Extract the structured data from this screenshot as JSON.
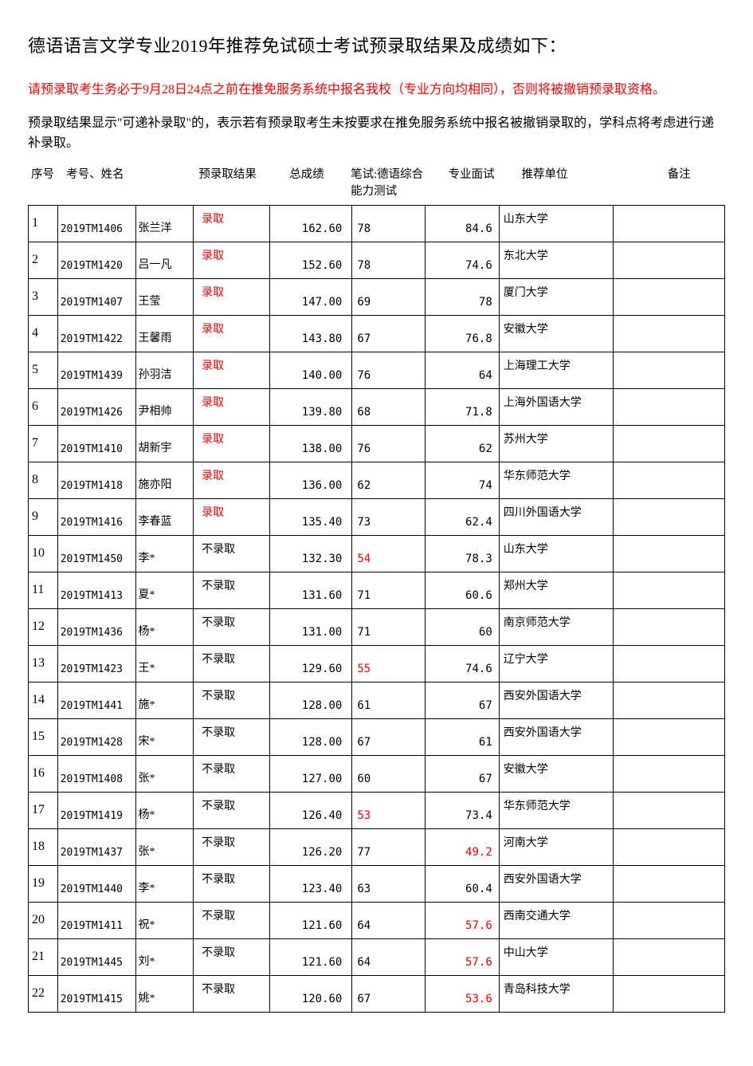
{
  "title": "德语语言文学专业2019年推荐免试硕士考试预录取结果及成绩如下：",
  "notice_red": "请预录取考生务必于9月28日24点之前在推免服务系统中报名我校（专业方向均相同），否则将被撤销预录取资格。",
  "notice_black": "预录取结果显示\"可递补录取\"的，表示若有预录取考生未按要求在推免服务系统中报名被撤销录取的，学科点将考虑进行递补录取。",
  "headers": {
    "seq": "序号",
    "exam_name": "考号、姓名",
    "result": "预录取结果",
    "total": "总成绩",
    "written_l1": "笔试:德语综合",
    "written_l2": "能力测试",
    "interview": "专业面试",
    "university": "推荐单位",
    "note": "备注"
  },
  "result_labels": {
    "admit": "录取",
    "reject": "不录取"
  },
  "colors": {
    "red": "#ff0000",
    "black": "#000000",
    "border": "#000000",
    "bg": "#ffffff"
  },
  "rows": [
    {
      "seq": "1",
      "exam": "2019TM1406",
      "name": "张兰洋",
      "result": "admit",
      "total": "162.60",
      "written": "78",
      "written_red": false,
      "inter": "84.6",
      "inter_red": false,
      "univ": "山东大学",
      "note": ""
    },
    {
      "seq": "2",
      "exam": "2019TM1420",
      "name": "吕一凡",
      "result": "admit",
      "total": "152.60",
      "written": "78",
      "written_red": false,
      "inter": "74.6",
      "inter_red": false,
      "univ": "东北大学",
      "note": ""
    },
    {
      "seq": "3",
      "exam": "2019TM1407",
      "name": "王莹",
      "result": "admit",
      "total": "147.00",
      "written": "69",
      "written_red": false,
      "inter": "78",
      "inter_red": false,
      "univ": "厦门大学",
      "note": ""
    },
    {
      "seq": "4",
      "exam": "2019TM1422",
      "name": "王馨雨",
      "result": "admit",
      "total": "143.80",
      "written": "67",
      "written_red": false,
      "inter": "76.8",
      "inter_red": false,
      "univ": "安徽大学",
      "note": ""
    },
    {
      "seq": "5",
      "exam": "2019TM1439",
      "name": "孙羽洁",
      "result": "admit",
      "total": "140.00",
      "written": "76",
      "written_red": false,
      "inter": "64",
      "inter_red": false,
      "univ": "上海理工大学",
      "note": ""
    },
    {
      "seq": "6",
      "exam": "2019TM1426",
      "name": "尹相帅",
      "result": "admit",
      "total": "139.80",
      "written": "68",
      "written_red": false,
      "inter": "71.8",
      "inter_red": false,
      "univ": "上海外国语大学",
      "note": ""
    },
    {
      "seq": "7",
      "exam": "2019TM1410",
      "name": "胡新宇",
      "result": "admit",
      "total": "138.00",
      "written": "76",
      "written_red": false,
      "inter": "62",
      "inter_red": false,
      "univ": "苏州大学",
      "note": ""
    },
    {
      "seq": "8",
      "exam": "2019TM1418",
      "name": "施亦阳",
      "result": "admit",
      "total": "136.00",
      "written": "62",
      "written_red": false,
      "inter": "74",
      "inter_red": false,
      "univ": "华东师范大学",
      "note": ""
    },
    {
      "seq": "9",
      "exam": "2019TM1416",
      "name": "李春蓝",
      "result": "admit",
      "total": "135.40",
      "written": "73",
      "written_red": false,
      "inter": "62.4",
      "inter_red": false,
      "univ": "四川外国语大学",
      "note": ""
    },
    {
      "seq": "10",
      "exam": "2019TM1450",
      "name": "李*",
      "result": "reject",
      "total": "132.30",
      "written": "54",
      "written_red": true,
      "inter": "78.3",
      "inter_red": false,
      "univ": "山东大学",
      "note": ""
    },
    {
      "seq": "11",
      "exam": "2019TM1413",
      "name": "夏*",
      "result": "reject",
      "total": "131.60",
      "written": "71",
      "written_red": false,
      "inter": "60.6",
      "inter_red": false,
      "univ": "郑州大学",
      "note": ""
    },
    {
      "seq": "12",
      "exam": "2019TM1436",
      "name": "杨*",
      "result": "reject",
      "total": "131.00",
      "written": "71",
      "written_red": false,
      "inter": "60",
      "inter_red": false,
      "univ": "南京师范大学",
      "note": ""
    },
    {
      "seq": "13",
      "exam": "2019TM1423",
      "name": "王*",
      "result": "reject",
      "total": "129.60",
      "written": "55",
      "written_red": true,
      "inter": "74.6",
      "inter_red": false,
      "univ": "辽宁大学",
      "note": ""
    },
    {
      "seq": "14",
      "exam": "2019TM1441",
      "name": "施*",
      "result": "reject",
      "total": "128.00",
      "written": "61",
      "written_red": false,
      "inter": "67",
      "inter_red": false,
      "univ": "西安外国语大学",
      "note": ""
    },
    {
      "seq": "15",
      "exam": "2019TM1428",
      "name": "宋*",
      "result": "reject",
      "total": "128.00",
      "written": "67",
      "written_red": false,
      "inter": "61",
      "inter_red": false,
      "univ": "西安外国语大学",
      "note": ""
    },
    {
      "seq": "16",
      "exam": "2019TM1408",
      "name": "张*",
      "result": "reject",
      "total": "127.00",
      "written": "60",
      "written_red": false,
      "inter": "67",
      "inter_red": false,
      "univ": "安徽大学",
      "note": ""
    },
    {
      "seq": "17",
      "exam": "2019TM1419",
      "name": "杨*",
      "result": "reject",
      "total": "126.40",
      "written": "53",
      "written_red": true,
      "inter": "73.4",
      "inter_red": false,
      "univ": "华东师范大学",
      "note": ""
    },
    {
      "seq": "18",
      "exam": "2019TM1437",
      "name": "张*",
      "result": "reject",
      "total": "126.20",
      "written": "77",
      "written_red": false,
      "inter": "49.2",
      "inter_red": true,
      "univ": "河南大学",
      "note": ""
    },
    {
      "seq": "19",
      "exam": "2019TM1440",
      "name": "李*",
      "result": "reject",
      "total": "123.40",
      "written": "63",
      "written_red": false,
      "inter": "60.4",
      "inter_red": false,
      "univ": "西安外国语大学",
      "note": ""
    },
    {
      "seq": "20",
      "exam": "2019TM1411",
      "name": "祝*",
      "result": "reject",
      "total": "121.60",
      "written": "64",
      "written_red": false,
      "inter": "57.6",
      "inter_red": true,
      "univ": "西南交通大学",
      "note": ""
    },
    {
      "seq": "21",
      "exam": "2019TM1445",
      "name": "刘*",
      "result": "reject",
      "total": "121.60",
      "written": "64",
      "written_red": false,
      "inter": "57.6",
      "inter_red": true,
      "univ": "中山大学",
      "note": ""
    },
    {
      "seq": "22",
      "exam": "2019TM1415",
      "name": "姚*",
      "result": "reject",
      "total": "120.60",
      "written": "67",
      "written_red": false,
      "inter": "53.6",
      "inter_red": true,
      "univ": "青岛科技大学",
      "note": ""
    }
  ]
}
